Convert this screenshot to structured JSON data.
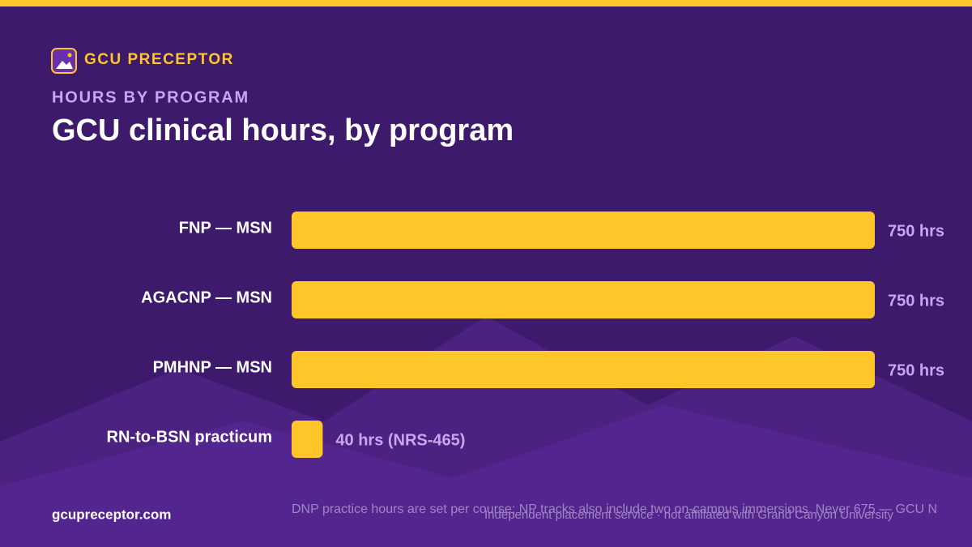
{
  "brand": "GCU PRECEPTOR",
  "chart_data": {
    "type": "hbar",
    "subtitle": "HOURS BY PROGRAM",
    "title": "GCU clinical hours, by program",
    "categories": [
      "FNP — MSN",
      "AGACNP — MSN",
      "PMHNP — MSN",
      "RN-to-BSN practicum"
    ],
    "values": [
      750,
      750,
      750,
      40
    ],
    "value_labels": [
      "750 hrs",
      "750 hrs",
      "750 hrs",
      "40 hrs (NRS-465)"
    ],
    "color": "#ffc629"
  },
  "footer": {
    "site": "gcupreceptor.com",
    "note": "DNP practice hours are set per course; NP tracks also include two on-campus immersions. Never 675 — GCU N",
    "disclaimer": "Independent placement service · not affiliated with Grand Canyon University"
  }
}
